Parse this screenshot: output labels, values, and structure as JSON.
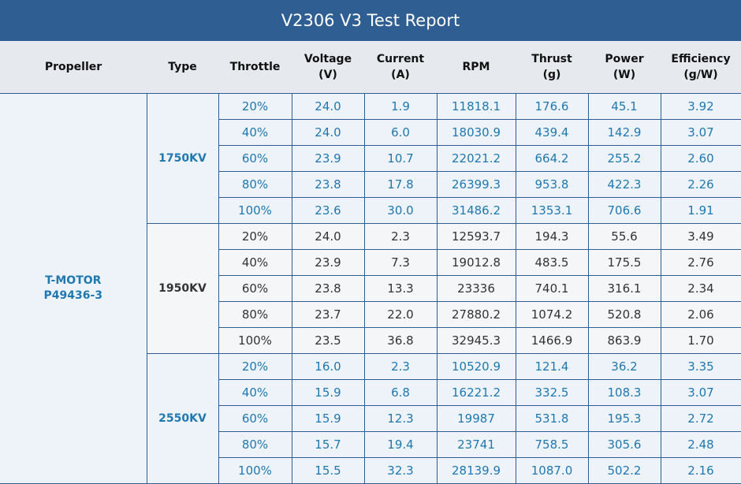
{
  "header": {
    "title": "V2306 V3 Test Report"
  },
  "table": {
    "columns": [
      [
        "Propeller"
      ],
      [
        "Type"
      ],
      [
        "Throttle"
      ],
      [
        "Voltage",
        "(V)"
      ],
      [
        "Current",
        "(A)"
      ],
      [
        "RPM"
      ],
      [
        "Thrust",
        "(g)"
      ],
      [
        "Power",
        "(W)"
      ],
      [
        "Efficiency",
        "(g/W)"
      ]
    ],
    "propeller": [
      "T-MOTOR",
      "P49436-3"
    ],
    "groups": [
      {
        "type": "1750KV",
        "rows": [
          [
            "20%",
            "24.0",
            "1.9",
            "11818.1",
            "176.6",
            "45.1",
            "3.92"
          ],
          [
            "40%",
            "24.0",
            "6.0",
            "18030.9",
            "439.4",
            "142.9",
            "3.07"
          ],
          [
            "60%",
            "23.9",
            "10.7",
            "22021.2",
            "664.2",
            "255.2",
            "2.60"
          ],
          [
            "80%",
            "23.8",
            "17.8",
            "26399.3",
            "953.8",
            "422.3",
            "2.26"
          ],
          [
            "100%",
            "23.6",
            "30.0",
            "31486.2",
            "1353.1",
            "706.6",
            "1.91"
          ]
        ]
      },
      {
        "type": "1950KV",
        "rows": [
          [
            "20%",
            "24.0",
            "2.3",
            "12593.7",
            "194.3",
            "55.6",
            "3.49"
          ],
          [
            "40%",
            "23.9",
            "7.3",
            "19012.8",
            "483.5",
            "175.5",
            "2.76"
          ],
          [
            "60%",
            "23.8",
            "13.3",
            "23336",
            "740.1",
            "316.1",
            "2.34"
          ],
          [
            "80%",
            "23.7",
            "22.0",
            "27880.2",
            "1074.2",
            "520.8",
            "2.06"
          ],
          [
            "100%",
            "23.5",
            "36.8",
            "32945.3",
            "1466.9",
            "863.9",
            "1.70"
          ]
        ]
      },
      {
        "type": "2550KV",
        "rows": [
          [
            "20%",
            "16.0",
            "2.3",
            "10520.9",
            "121.4",
            "36.2",
            "3.35"
          ],
          [
            "40%",
            "15.9",
            "6.8",
            "16221.2",
            "332.5",
            "108.3",
            "3.07"
          ],
          [
            "60%",
            "15.9",
            "12.3",
            "19987",
            "531.8",
            "195.3",
            "2.72"
          ],
          [
            "80%",
            "15.7",
            "19.4",
            "23741",
            "758.5",
            "305.6",
            "2.48"
          ],
          [
            "100%",
            "15.5",
            "32.3",
            "28139.9",
            "1087.0",
            "502.2",
            "2.16"
          ]
        ]
      }
    ]
  }
}
